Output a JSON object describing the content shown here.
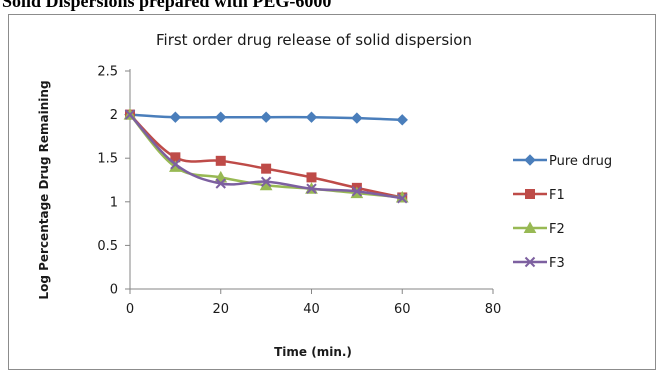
{
  "page": {
    "heading": "Solid Dispersions prepared with PEG-6000"
  },
  "chart_data": {
    "type": "line",
    "title": "First order drug release of solid dispersion",
    "xlabel": "Time (min.)",
    "ylabel": "Log Percentage Drug Remaining",
    "xlim": [
      0,
      80
    ],
    "ylim": [
      0,
      2.5
    ],
    "xticks": [
      0,
      20,
      40,
      60,
      80
    ],
    "yticks": [
      0,
      0.5,
      1,
      1.5,
      2,
      2.5
    ],
    "grid": false,
    "legend_position": "right",
    "x": [
      0,
      10,
      20,
      30,
      40,
      50,
      60
    ],
    "series": [
      {
        "name": "Pure drug",
        "values": [
          2.0,
          1.97,
          1.97,
          1.97,
          1.97,
          1.96,
          1.94
        ],
        "color": "#4a7ebb",
        "marker": "diamond"
      },
      {
        "name": "F1",
        "values": [
          2.0,
          1.51,
          1.47,
          1.38,
          1.28,
          1.16,
          1.05
        ],
        "color": "#be4b48",
        "marker": "square"
      },
      {
        "name": "F2",
        "values": [
          2.0,
          1.4,
          1.28,
          1.19,
          1.15,
          1.1,
          1.05
        ],
        "color": "#98b954",
        "marker": "triangle"
      },
      {
        "name": "F3",
        "values": [
          2.0,
          1.43,
          1.21,
          1.23,
          1.15,
          1.12,
          1.04
        ],
        "color": "#7d60a0",
        "marker": "x"
      }
    ]
  }
}
